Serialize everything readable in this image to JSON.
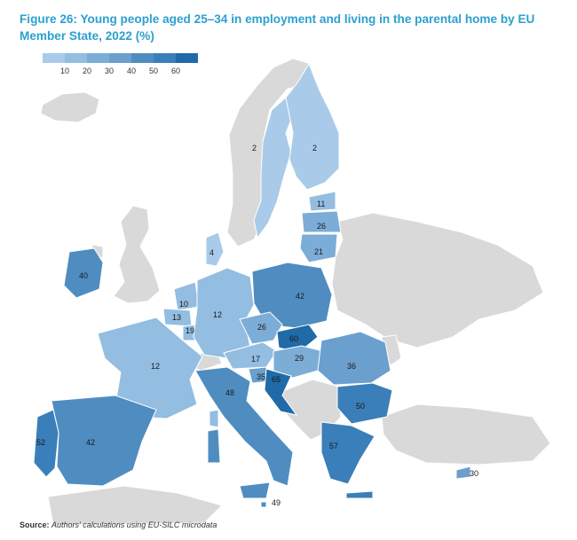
{
  "figure": {
    "title": "Figure 26: Young people aged 25–34 in employment and living in the parental home by EU Member State, 2022 (%)",
    "source_label": "Source:",
    "source_text": "Authors' calculations using EU-SILC microdata"
  },
  "legend": {
    "ticks": [
      "10",
      "20",
      "30",
      "40",
      "50",
      "60"
    ],
    "colors": [
      "#a9cbe9",
      "#93bde1",
      "#7cadd7",
      "#6a9fce",
      "#4f8dc1",
      "#3a7fb9",
      "#1f6aa7"
    ]
  },
  "colors": {
    "non_eu": "#d9d9d9",
    "border": "#ffffff",
    "title": "#2ba0cf"
  },
  "map_data": {
    "type": "choropleth",
    "unit": "%",
    "countries": [
      {
        "name": "Sweden",
        "value": 2
      },
      {
        "name": "Finland",
        "value": 2
      },
      {
        "name": "Estonia",
        "value": 11
      },
      {
        "name": "Latvia",
        "value": 26
      },
      {
        "name": "Lithuania",
        "value": 21
      },
      {
        "name": "Denmark",
        "value": 4
      },
      {
        "name": "Ireland",
        "value": 40
      },
      {
        "name": "Poland",
        "value": 42
      },
      {
        "name": "Netherlands",
        "value": 10
      },
      {
        "name": "Belgium",
        "value": 13
      },
      {
        "name": "Luxembourg",
        "value": 19
      },
      {
        "name": "Germany",
        "value": 12
      },
      {
        "name": "Czechia",
        "value": 26
      },
      {
        "name": "Slovakia",
        "value": 60
      },
      {
        "name": "Austria",
        "value": 17
      },
      {
        "name": "Hungary",
        "value": 29
      },
      {
        "name": "Slovenia",
        "value": 35
      },
      {
        "name": "Croatia",
        "value": 65
      },
      {
        "name": "Romania",
        "value": 36
      },
      {
        "name": "Bulgaria",
        "value": 50
      },
      {
        "name": "France",
        "value": 12
      },
      {
        "name": "Italy",
        "value": 48
      },
      {
        "name": "Spain",
        "value": 42
      },
      {
        "name": "Portugal",
        "value": 52
      },
      {
        "name": "Greece",
        "value": 57
      },
      {
        "name": "Cyprus",
        "value": 30
      },
      {
        "name": "Malta",
        "value": 49
      }
    ]
  }
}
